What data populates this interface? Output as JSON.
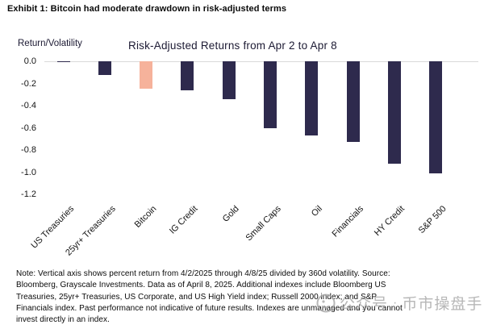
{
  "exhibit_title": "Exhibit 1: Bitcoin had moderate drawdown in risk-adjusted terms",
  "chart_data": {
    "type": "bar",
    "title": "Risk-Adjusted Returns from Apr 2 to Apr 8",
    "ylabel": "Return/Volatility",
    "xlabel": "",
    "categories": [
      "US Treasuries",
      "25yr+ Treasuries",
      "Bitcoin",
      "IG Credit",
      "Gold",
      "Small Caps",
      "Oil",
      "Financials",
      "HY Credit",
      "S&P 500"
    ],
    "values": [
      -0.01,
      -0.12,
      -0.25,
      -0.26,
      -0.34,
      -0.6,
      -0.67,
      -0.73,
      -0.92,
      -1.01
    ],
    "highlight_index": 2,
    "colors": {
      "default_bar": "#2e2a4d",
      "highlight_bar": "#f6b29b",
      "axis_line": "#d9d9d9"
    },
    "ylim": [
      0.0,
      -1.2
    ],
    "ytick_labels": [
      "0.0",
      "-0.2",
      "-0.4",
      "-0.6",
      "-0.8",
      "-1.0",
      "-1.2"
    ],
    "grid": false,
    "legend": "none"
  },
  "note": "Note: Vertical axis shows percent return from 4/2/2025 through 4/8/25 divided by 360d volatility. Source: Bloomberg, Grayscale Investments. Data as of April 8, 2025. Additional indexes include Bloomberg US Treasuries, 25yr+ Treasuries, US Corporate, and US High Yield index; Russell 2000 index; and S&P Financials index. Past performance not indicative of future results. Indexes are unmanaged and you cannot invest directly in an index.",
  "watermark": {
    "icon": "wechat-account-logo",
    "label": "公众号",
    "separator": "·",
    "account": "币市操盘手"
  }
}
